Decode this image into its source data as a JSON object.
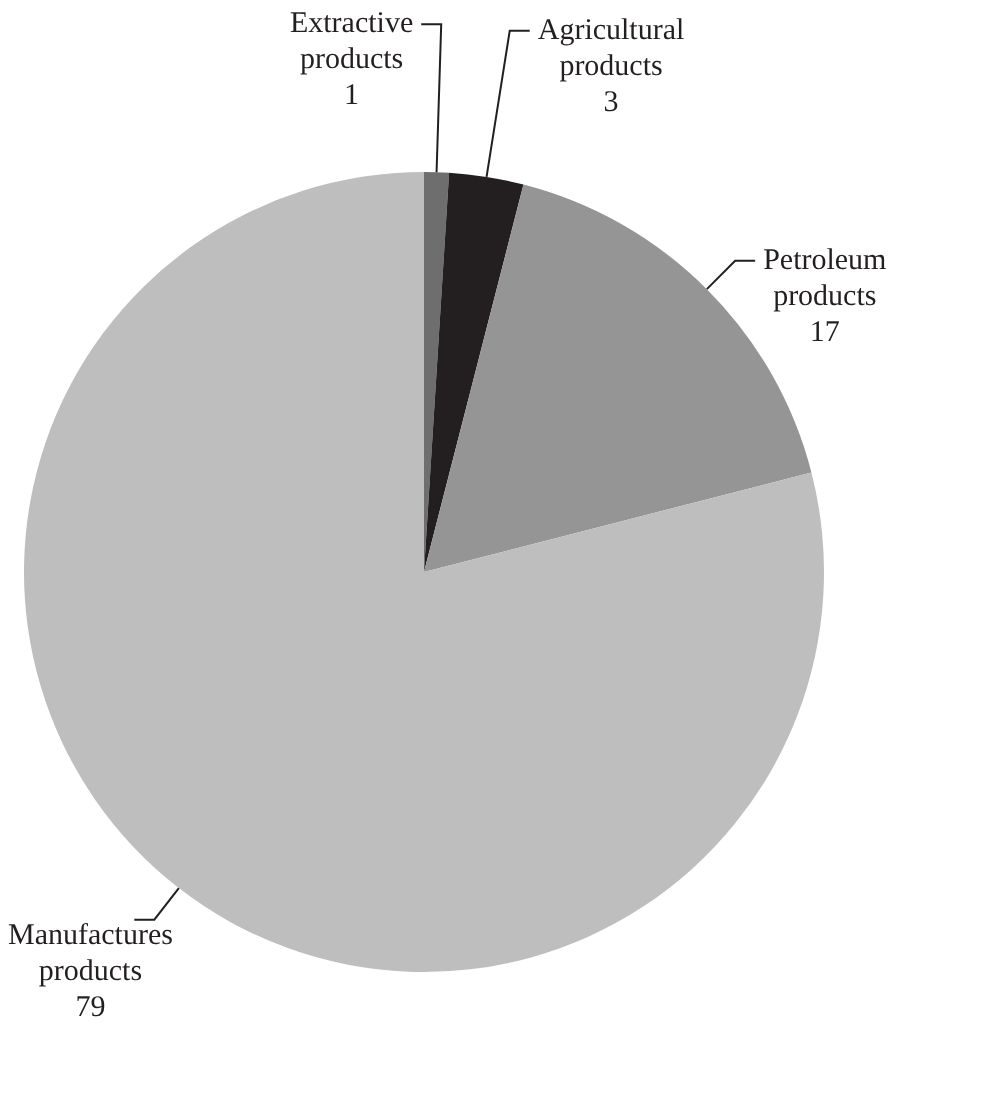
{
  "chart_data": {
    "type": "pie",
    "categories": [
      "Extractive products",
      "Agricultural products",
      "Petroleum products",
      "Manufactures products"
    ],
    "values": [
      1,
      3,
      17,
      79
    ],
    "colors": [
      "#6e6e6e",
      "#231f20",
      "#959595",
      "#bebebe"
    ],
    "data_labels": true,
    "legend": false
  }
}
